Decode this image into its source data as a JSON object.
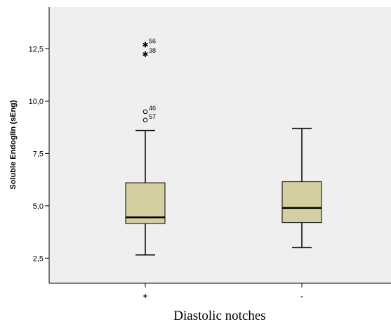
{
  "chart_data": {
    "type": "boxplot",
    "title": "",
    "xlabel": "Diastolic notches",
    "ylabel": "Soluble Endoglin (sEng)",
    "ylim": [
      1.3,
      14.5
    ],
    "yticks": [
      "2,5",
      "5,0",
      "7,5",
      "10,0",
      "12,5"
    ],
    "ytick_values": [
      2.5,
      5.0,
      7.5,
      10.0,
      12.5
    ],
    "categories": [
      "+",
      "-"
    ],
    "grid": false,
    "colors": {
      "plot_background": "#efefef",
      "box_fill": "#d4cfa0",
      "stroke": "#000000"
    },
    "boxes": [
      {
        "category": "+",
        "whisker_low": 2.65,
        "q1": 4.15,
        "median": 4.45,
        "q3": 6.1,
        "whisker_high": 8.6,
        "outliers": [
          {
            "label": "57",
            "value": 9.1,
            "marker": "circle"
          },
          {
            "label": "46",
            "value": 9.5,
            "marker": "circle"
          },
          {
            "label": "38",
            "value": 12.25,
            "marker": "star"
          },
          {
            "label": "56",
            "value": 12.7,
            "marker": "star"
          }
        ]
      },
      {
        "category": "-",
        "whisker_low": 3.0,
        "q1": 4.2,
        "median": 4.9,
        "q3": 6.15,
        "whisker_high": 8.7,
        "outliers": []
      }
    ]
  }
}
